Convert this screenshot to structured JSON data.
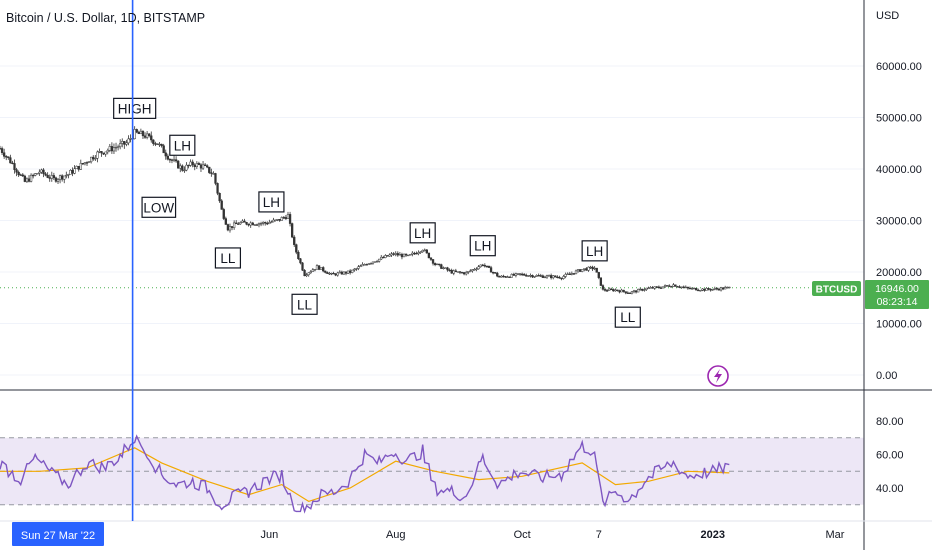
{
  "header": {
    "title": "Bitcoin / U.S. Dollar, 1D, BITSTAMP"
  },
  "price_axis": {
    "currency": "USD",
    "ticks": [
      "60000.00",
      "50000.00",
      "40000.00",
      "30000.00",
      "20000.00",
      "10000.00",
      "0.00"
    ]
  },
  "rsi_axis": {
    "ticks": [
      "80.00",
      "60.00",
      "40.00"
    ]
  },
  "time_axis": {
    "labels": [
      "Jun",
      "Aug",
      "Oct",
      "7",
      "2023",
      "Mar"
    ],
    "cursor_label": "Sun 27 Mar '22"
  },
  "last_price": {
    "symbol": "BTCUSD",
    "value": "16946.00",
    "countdown": "08:23:14"
  },
  "colors": {
    "up": "#26a69a",
    "down": "#ef5350",
    "candles": "#333333",
    "cursor": "#2962ff",
    "ema": "#f2a900",
    "rsi": "#7e57c2",
    "rsi_band": "#ede7f6",
    "last_price": "#4caf50",
    "grid": "#f0f3fa"
  },
  "icons": {
    "lightning": "lightning-icon"
  },
  "chart_data": {
    "type": "candlestick",
    "title": "Bitcoin / U.S. Dollar, 1D, BITSTAMP",
    "ylabel": "USD",
    "ylim": [
      -2000,
      68000
    ],
    "x_range": [
      "2022-01-22",
      "2023-03-15"
    ],
    "cursor_date": "2022-03-27",
    "last_price": 16946,
    "price_series": {
      "name": "BTCUSD",
      "points": [
        [
          "2022-01-22",
          44000
        ],
        [
          "2022-01-28",
          41000
        ],
        [
          "2022-02-03",
          37500
        ],
        [
          "2022-02-10",
          39500
        ],
        [
          "2022-02-17",
          38000
        ],
        [
          "2022-02-24",
          39000
        ],
        [
          "2022-03-03",
          41000
        ],
        [
          "2022-03-10",
          43000
        ],
        [
          "2022-03-17",
          44000
        ],
        [
          "2022-03-24",
          45000
        ],
        [
          "2022-03-28",
          47000
        ],
        [
          "2022-04-02",
          46500
        ],
        [
          "2022-04-08",
          45000
        ],
        [
          "2022-04-14",
          42000
        ],
        [
          "2022-04-20",
          40000
        ],
        [
          "2022-04-25",
          41000
        ],
        [
          "2022-04-30",
          40500
        ],
        [
          "2022-05-05",
          39000
        ],
        [
          "2022-05-09",
          32000
        ],
        [
          "2022-05-12",
          28500
        ],
        [
          "2022-05-17",
          29500
        ],
        [
          "2022-05-23",
          29500
        ],
        [
          "2022-05-30",
          29500
        ],
        [
          "2022-06-05",
          30000
        ],
        [
          "2022-06-10",
          31000
        ],
        [
          "2022-06-13",
          25000
        ],
        [
          "2022-06-18",
          19500
        ],
        [
          "2022-06-24",
          21000
        ],
        [
          "2022-07-01",
          19500
        ],
        [
          "2022-07-10",
          20000
        ],
        [
          "2022-07-17",
          21500
        ],
        [
          "2022-07-24",
          22500
        ],
        [
          "2022-07-31",
          23500
        ],
        [
          "2022-08-07",
          23000
        ],
        [
          "2022-08-14",
          24500
        ],
        [
          "2022-08-20",
          21500
        ],
        [
          "2022-08-28",
          20000
        ],
        [
          "2022-09-04",
          19800
        ],
        [
          "2022-09-12",
          21500
        ],
        [
          "2022-09-20",
          19000
        ],
        [
          "2022-09-30",
          19500
        ],
        [
          "2022-10-10",
          19200
        ],
        [
          "2022-10-20",
          19000
        ],
        [
          "2022-10-30",
          20500
        ],
        [
          "2022-11-05",
          20800
        ],
        [
          "2022-11-09",
          16500
        ],
        [
          "2022-11-15",
          16500
        ],
        [
          "2022-11-22",
          16000
        ],
        [
          "2022-11-30",
          16800
        ],
        [
          "2022-12-06",
          17000
        ],
        [
          "2022-12-13",
          17500
        ],
        [
          "2022-12-20",
          16800
        ],
        [
          "2022-12-28",
          16600
        ],
        [
          "2023-01-03",
          16700
        ],
        [
          "2023-01-09",
          16946
        ]
      ]
    },
    "annotations": [
      {
        "label": "HIGH",
        "date": "2022-03-28",
        "value": 47500
      },
      {
        "label": "LOW",
        "date": "2022-03-30",
        "value": 38000
      },
      {
        "label": "LH",
        "date": "2022-04-20",
        "value": 41500
      },
      {
        "label": "LL",
        "date": "2022-05-12",
        "value": 27000
      },
      {
        "label": "LH",
        "date": "2022-06-02",
        "value": 30500
      },
      {
        "label": "LL",
        "date": "2022-06-18",
        "value": 18000
      },
      {
        "label": "LH",
        "date": "2022-08-14",
        "value": 24500
      },
      {
        "label": "LH",
        "date": "2022-09-12",
        "value": 22000
      },
      {
        "label": "LH",
        "date": "2022-11-05",
        "value": 21000
      },
      {
        "label": "LL",
        "date": "2022-11-21",
        "value": 15500
      }
    ],
    "rsi": {
      "ylim": [
        25,
        85
      ],
      "bands": [
        70,
        50,
        30
      ],
      "rsi_points": [
        [
          "2022-01-22",
          55
        ],
        [
          "2022-02-01",
          45
        ],
        [
          "2022-02-08",
          58
        ],
        [
          "2022-02-15",
          50
        ],
        [
          "2022-02-24",
          42
        ],
        [
          "2022-03-05",
          55
        ],
        [
          "2022-03-14",
          52
        ],
        [
          "2022-03-22",
          60
        ],
        [
          "2022-03-28",
          70
        ],
        [
          "2022-04-03",
          62
        ],
        [
          "2022-04-10",
          48
        ],
        [
          "2022-04-18",
          42
        ],
        [
          "2022-04-25",
          44
        ],
        [
          "2022-05-02",
          40
        ],
        [
          "2022-05-09",
          30
        ],
        [
          "2022-05-14",
          34
        ],
        [
          "2022-05-22",
          38
        ],
        [
          "2022-05-31",
          45
        ],
        [
          "2022-06-07",
          48
        ],
        [
          "2022-06-13",
          30
        ],
        [
          "2022-06-18",
          27
        ],
        [
          "2022-06-25",
          35
        ],
        [
          "2022-07-03",
          38
        ],
        [
          "2022-07-10",
          45
        ],
        [
          "2022-07-17",
          60
        ],
        [
          "2022-07-24",
          55
        ],
        [
          "2022-07-31",
          62
        ],
        [
          "2022-08-07",
          56
        ],
        [
          "2022-08-14",
          62
        ],
        [
          "2022-08-20",
          40
        ],
        [
          "2022-08-28",
          38
        ],
        [
          "2022-09-04",
          35
        ],
        [
          "2022-09-12",
          58
        ],
        [
          "2022-09-20",
          42
        ],
        [
          "2022-09-30",
          50
        ],
        [
          "2022-10-10",
          46
        ],
        [
          "2022-10-20",
          48
        ],
        [
          "2022-10-30",
          65
        ],
        [
          "2022-11-05",
          62
        ],
        [
          "2022-11-09",
          30
        ],
        [
          "2022-11-15",
          38
        ],
        [
          "2022-11-22",
          33
        ],
        [
          "2022-11-30",
          45
        ],
        [
          "2022-12-06",
          50
        ],
        [
          "2022-12-13",
          55
        ],
        [
          "2022-12-20",
          47
        ],
        [
          "2022-12-28",
          49
        ],
        [
          "2023-01-03",
          50
        ],
        [
          "2023-01-09",
          54
        ]
      ],
      "ema_points": [
        [
          "2022-01-22",
          50
        ],
        [
          "2022-02-10",
          50
        ],
        [
          "2022-03-05",
          52
        ],
        [
          "2022-03-28",
          64
        ],
        [
          "2022-04-10",
          55
        ],
        [
          "2022-05-02",
          44
        ],
        [
          "2022-05-22",
          36
        ],
        [
          "2022-06-07",
          42
        ],
        [
          "2022-06-20",
          32
        ],
        [
          "2022-07-10",
          40
        ],
        [
          "2022-08-01",
          56
        ],
        [
          "2022-08-20",
          50
        ],
        [
          "2022-09-10",
          45
        ],
        [
          "2022-10-01",
          47
        ],
        [
          "2022-10-30",
          55
        ],
        [
          "2022-11-15",
          42
        ],
        [
          "2022-12-01",
          44
        ],
        [
          "2022-12-20",
          50
        ],
        [
          "2023-01-09",
          49
        ]
      ]
    }
  }
}
